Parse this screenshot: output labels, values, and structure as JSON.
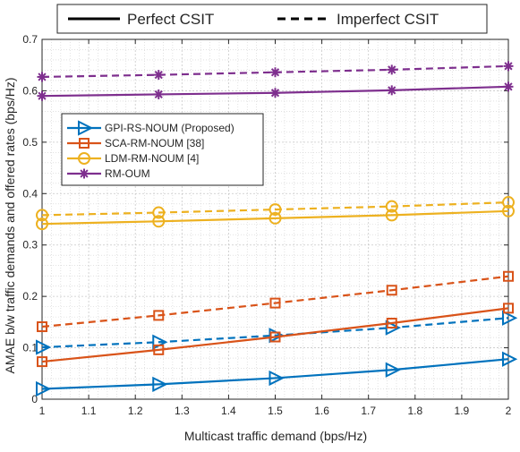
{
  "chart_data": {
    "type": "line",
    "xlabel": "Multicast traffic demand (bps/Hz)",
    "ylabel": "AMAE b/w traffic demands and offered rates (bps/Hz)",
    "xlim": [
      1,
      2
    ],
    "ylim": [
      0,
      0.7
    ],
    "xticks": [
      1,
      1.1,
      1.2,
      1.3,
      1.4,
      1.5,
      1.6,
      1.7,
      1.8,
      1.9,
      2
    ],
    "yticks": [
      0,
      0.1,
      0.2,
      0.3,
      0.4,
      0.5,
      0.6,
      0.7
    ],
    "grid": true,
    "minor_grid": true,
    "x": [
      1,
      1.25,
      1.5,
      1.75,
      2
    ],
    "style_legend": [
      {
        "label": "Perfect CSIT",
        "dash": false
      },
      {
        "label": "Imperfect CSIT",
        "dash": true
      }
    ],
    "legend": [
      {
        "label": "GPI-RS-NOUM (Proposed)",
        "color": "#0072BD",
        "marker": "triangle-right"
      },
      {
        "label": "SCA-RM-NOUM [38]",
        "color": "#D95319",
        "marker": "square"
      },
      {
        "label": "LDM-RM-NOUM [4]",
        "color": "#EDB120",
        "marker": "circle"
      },
      {
        "label": "RM-OUM",
        "color": "#7E2F8E",
        "marker": "asterisk"
      }
    ],
    "series": [
      {
        "scheme": "GPI-RS-NOUM (Proposed)",
        "csit": "Perfect CSIT",
        "color": "#0072BD",
        "marker": "triangle-right",
        "dash": false,
        "values": [
          0.02,
          0.029,
          0.041,
          0.057,
          0.078
        ]
      },
      {
        "scheme": "GPI-RS-NOUM (Proposed)",
        "csit": "Imperfect CSIT",
        "color": "#0072BD",
        "marker": "triangle-right",
        "dash": true,
        "values": [
          0.101,
          0.111,
          0.124,
          0.139,
          0.158
        ]
      },
      {
        "scheme": "SCA-RM-NOUM [38]",
        "csit": "Perfect CSIT",
        "color": "#D95319",
        "marker": "square",
        "dash": false,
        "values": [
          0.073,
          0.096,
          0.121,
          0.148,
          0.177
        ]
      },
      {
        "scheme": "SCA-RM-NOUM [38]",
        "csit": "Imperfect CSIT",
        "color": "#D95319",
        "marker": "square",
        "dash": true,
        "values": [
          0.141,
          0.163,
          0.187,
          0.212,
          0.239
        ]
      },
      {
        "scheme": "LDM-RM-NOUM [4]",
        "csit": "Perfect CSIT",
        "color": "#EDB120",
        "marker": "circle",
        "dash": false,
        "values": [
          0.341,
          0.346,
          0.352,
          0.358,
          0.366
        ]
      },
      {
        "scheme": "LDM-RM-NOUM [4]",
        "csit": "Imperfect CSIT",
        "color": "#EDB120",
        "marker": "circle",
        "dash": true,
        "values": [
          0.358,
          0.363,
          0.369,
          0.375,
          0.383
        ]
      },
      {
        "scheme": "RM-OUM",
        "csit": "Perfect CSIT",
        "color": "#7E2F8E",
        "marker": "asterisk",
        "dash": false,
        "values": [
          0.59,
          0.593,
          0.596,
          0.601,
          0.608
        ]
      },
      {
        "scheme": "RM-OUM",
        "csit": "Imperfect CSIT",
        "color": "#7E2F8E",
        "marker": "asterisk",
        "dash": true,
        "values": [
          0.627,
          0.631,
          0.636,
          0.641,
          0.648
        ]
      }
    ]
  }
}
